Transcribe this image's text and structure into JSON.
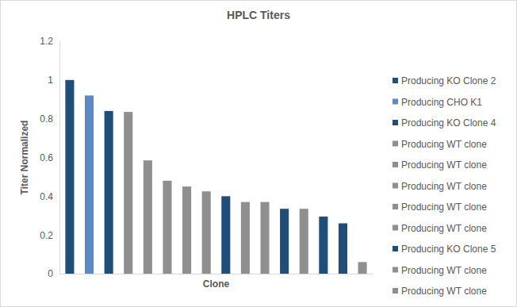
{
  "chart_data": {
    "type": "bar",
    "title": "HPLC Titers",
    "x_label": "Clone",
    "y_label": "Titer Normalized",
    "categories": [
      null,
      null,
      null,
      null,
      null,
      null,
      null,
      null,
      null,
      null,
      null,
      null,
      null,
      null,
      null,
      null
    ],
    "series": [
      {
        "name": "Producing KO Clone 2",
        "color": "#1f4e79",
        "values": [
          1.0,
          null,
          null,
          null,
          null,
          null,
          null,
          null,
          null,
          null,
          null,
          null,
          null,
          null,
          null,
          null
        ]
      },
      {
        "name": "Producing CHO K1",
        "color": "#5b8ac4",
        "values": [
          null,
          0.92,
          null,
          null,
          null,
          null,
          null,
          null,
          null,
          null,
          null,
          null,
          null,
          null,
          null,
          null
        ]
      },
      {
        "name": "Producing KO Clone 4",
        "color": "#1f4e79",
        "values": [
          null,
          null,
          0.84,
          null,
          null,
          null,
          null,
          null,
          null,
          null,
          null,
          null,
          null,
          null,
          null,
          null
        ]
      },
      {
        "name": "Producing WT clone",
        "color": "#8f8f8f",
        "values": [
          null,
          null,
          null,
          0.835,
          null,
          null,
          null,
          null,
          null,
          null,
          null,
          null,
          null,
          null,
          null,
          null
        ]
      },
      {
        "name": "Producing WT clone",
        "color": "#8f8f8f",
        "values": [
          null,
          null,
          null,
          null,
          0.585,
          null,
          null,
          null,
          null,
          null,
          null,
          null,
          null,
          null,
          null,
          null
        ]
      },
      {
        "name": "Producing WT clone",
        "color": "#8f8f8f",
        "values": [
          null,
          null,
          null,
          null,
          null,
          0.48,
          null,
          null,
          null,
          null,
          null,
          null,
          null,
          null,
          null,
          null
        ]
      },
      {
        "name": "Producing WT clone",
        "color": "#8f8f8f",
        "values": [
          null,
          null,
          null,
          null,
          null,
          null,
          0.45,
          null,
          null,
          null,
          null,
          null,
          null,
          null,
          null,
          null
        ]
      },
      {
        "name": "Producing WT clone",
        "color": "#8f8f8f",
        "values": [
          null,
          null,
          null,
          null,
          null,
          null,
          null,
          0.425,
          null,
          null,
          null,
          null,
          null,
          null,
          null,
          null
        ]
      },
      {
        "name": "Producing KO Clone 5",
        "color": "#1f4e79",
        "values": [
          null,
          null,
          null,
          null,
          null,
          null,
          null,
          null,
          0.4,
          null,
          null,
          null,
          null,
          null,
          null,
          null
        ]
      },
      {
        "name": "Producing WT clone",
        "color": "#8f8f8f",
        "values": [
          null,
          null,
          null,
          null,
          null,
          null,
          null,
          null,
          null,
          0.37,
          null,
          null,
          null,
          null,
          null,
          null
        ]
      },
      {
        "name": "Producing WT clone",
        "color": "#8f8f8f",
        "values": [
          null,
          null,
          null,
          null,
          null,
          null,
          null,
          null,
          null,
          null,
          0.37,
          null,
          null,
          null,
          null,
          null
        ]
      },
      {
        "color": "#1f4e79",
        "values": [
          null,
          null,
          null,
          null,
          null,
          null,
          null,
          null,
          null,
          null,
          null,
          0.335,
          null,
          null,
          null,
          null
        ]
      },
      {
        "color": "#8f8f8f",
        "values": [
          null,
          null,
          null,
          null,
          null,
          null,
          null,
          null,
          null,
          null,
          null,
          null,
          0.335,
          null,
          null,
          null
        ]
      },
      {
        "color": "#1f4e79",
        "values": [
          null,
          null,
          null,
          null,
          null,
          null,
          null,
          null,
          null,
          null,
          null,
          null,
          null,
          0.295,
          null,
          null
        ]
      },
      {
        "color": "#1f4e79",
        "values": [
          null,
          null,
          null,
          null,
          null,
          null,
          null,
          null,
          null,
          null,
          null,
          null,
          null,
          null,
          0.26,
          null
        ]
      },
      {
        "color": "#8f8f8f",
        "values": [
          null,
          null,
          null,
          null,
          null,
          null,
          null,
          null,
          null,
          null,
          null,
          null,
          null,
          null,
          null,
          0.06
        ]
      }
    ],
    "ylim": [
      0,
      1.2
    ],
    "yticks": [
      0,
      0.2,
      0.4,
      0.6,
      0.8,
      1,
      1.2
    ],
    "grid": false,
    "legend": "right"
  }
}
